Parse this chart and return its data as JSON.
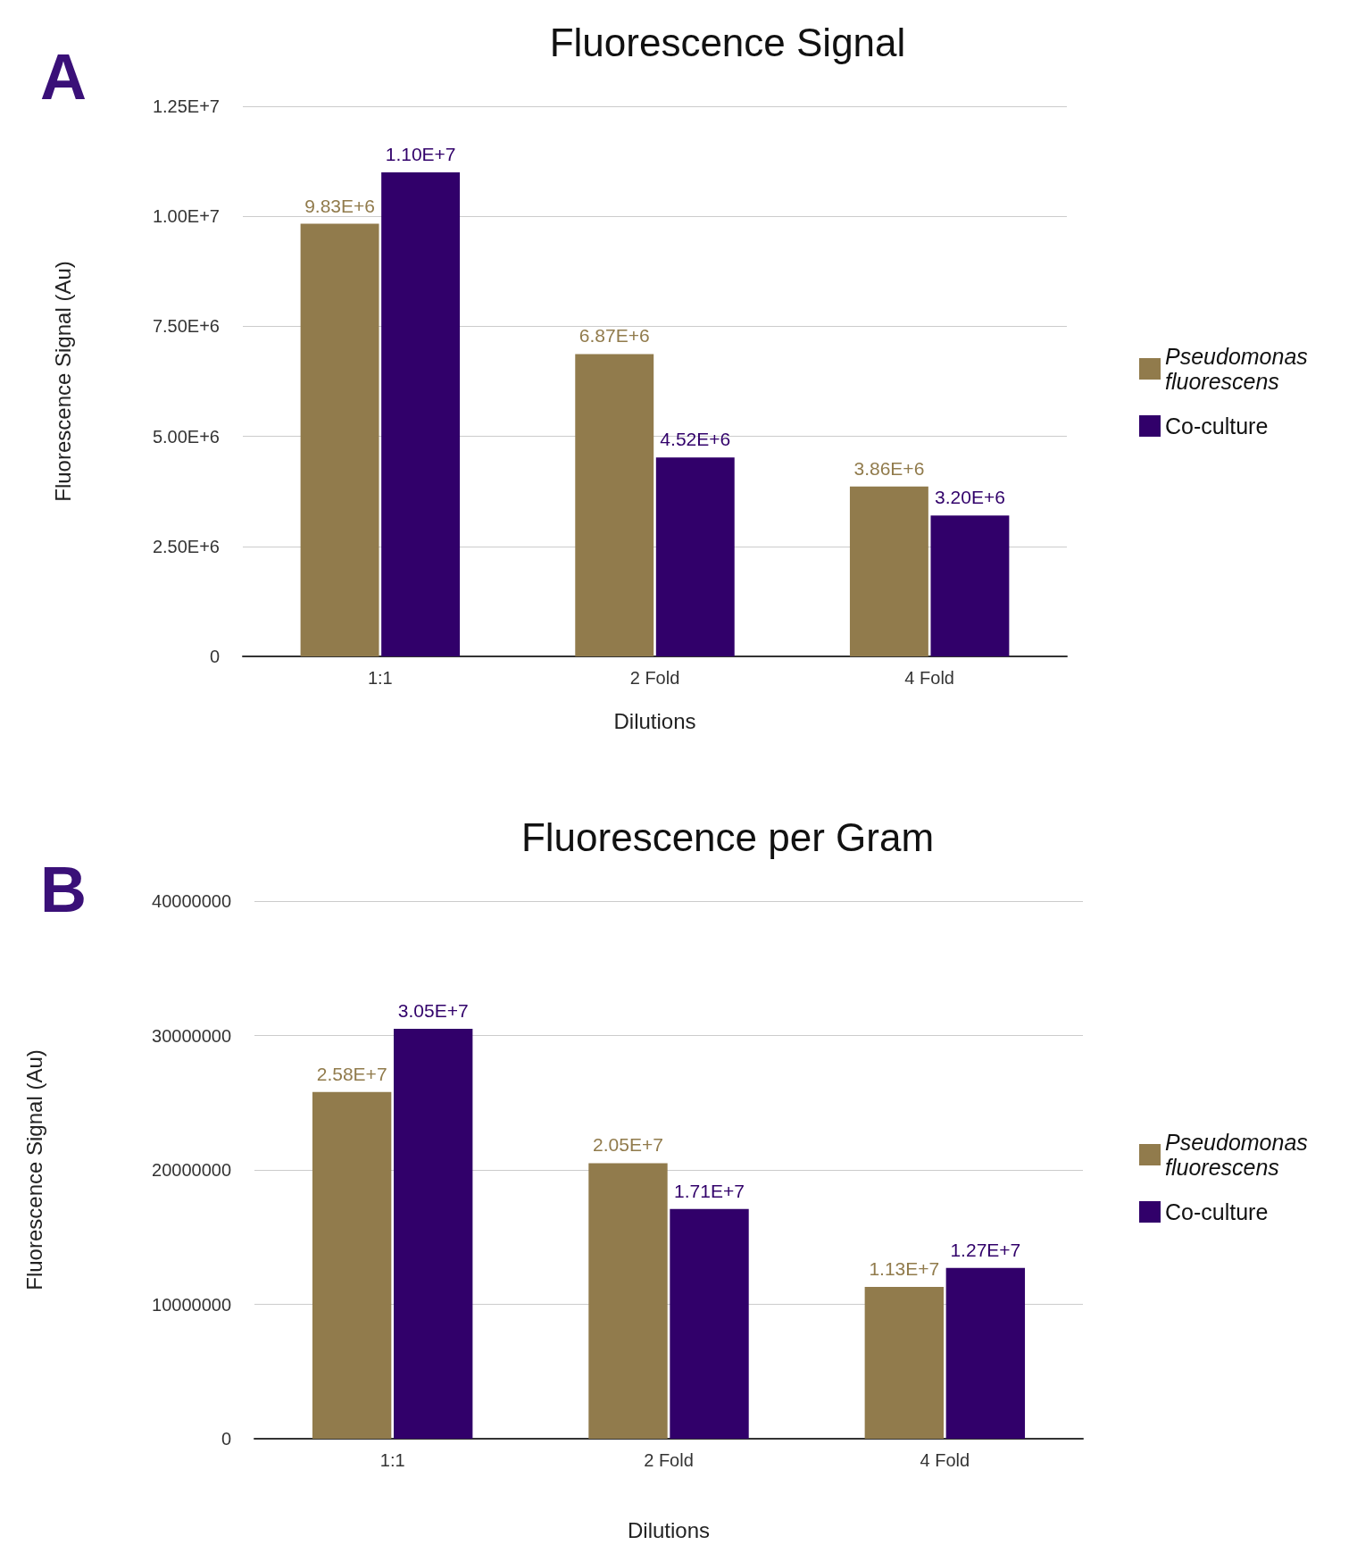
{
  "chart_data": [
    {
      "type": "bar",
      "title": "Fluorescence Signal",
      "xlabel": "Dilutions",
      "ylabel": "Fluorescence Signal (Au)",
      "annotations": [
        "A"
      ],
      "categories": [
        "1:1",
        "2 Fold",
        "4 Fold"
      ],
      "series": [
        {
          "name": "Pseudomonas fluorescens",
          "color": "#917b4c",
          "values": [
            9830000,
            6870000,
            3860000
          ],
          "value_labels": [
            "9.83E+6",
            "6.87E+6",
            "3.86E+6"
          ]
        },
        {
          "name": "Co-culture",
          "color": "#31006a",
          "values": [
            11000000,
            4520000,
            3200000
          ],
          "value_labels": [
            "1.10E+7",
            "4.52E+6",
            "3.20E+6"
          ]
        }
      ],
      "ylim": [
        0,
        12500000
      ],
      "yticks": [
        0,
        {
          "value": 2500000,
          "label": "2.50E+6"
        },
        {
          "value": 5000000,
          "label": "5.00E+6"
        },
        {
          "value": 7500000,
          "label": "7.50E+6"
        },
        {
          "value": 10000000,
          "label": "1.00E+7"
        },
        {
          "value": 12500000,
          "label": "1.25E+7"
        }
      ],
      "grid": "y",
      "legend": "right"
    },
    {
      "type": "bar",
      "title": "Fluorescence per Gram",
      "xlabel": "Dilutions",
      "ylabel": "Fluorescence Signal (Au)",
      "annotations": [
        "B"
      ],
      "categories": [
        "1:1",
        "2 Fold",
        "4 Fold"
      ],
      "series": [
        {
          "name": "Pseudomonas fluorescens",
          "color": "#917b4c",
          "values": [
            25800000,
            20500000,
            11300000
          ],
          "value_labels": [
            "2.58E+7",
            "2.05E+7",
            "1.13E+7"
          ]
        },
        {
          "name": "Co-culture",
          "color": "#31006a",
          "values": [
            30500000,
            17100000,
            12700000
          ],
          "value_labels": [
            "3.05E+7",
            "1.71E+7",
            "1.27E+7"
          ]
        }
      ],
      "ylim": [
        0,
        40000000
      ],
      "yticks": [
        0,
        10000000,
        20000000,
        30000000,
        40000000
      ],
      "grid": "y",
      "legend": "right"
    }
  ]
}
